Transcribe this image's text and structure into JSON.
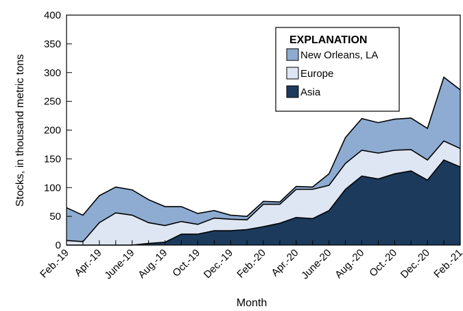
{
  "chart_data": {
    "type": "area",
    "stacked": true,
    "ylabel": "Stocks, in thousand metric tons",
    "xlabel": "Month",
    "ylim": [
      0,
      400
    ],
    "yticks": [
      0,
      50,
      100,
      150,
      200,
      250,
      300,
      350,
      400
    ],
    "x": [
      "Feb.-19",
      "Mar.-19",
      "Apr.-19",
      "May-19",
      "June-19",
      "July-19",
      "Aug.-19",
      "Sep.-19",
      "Oct.-19",
      "Nov.-19",
      "Dec.-19",
      "Jan.-20",
      "Feb.-20",
      "Mar.-20",
      "Apr.-20",
      "May-20",
      "June-20",
      "July-20",
      "Aug.-20",
      "Sep.-20",
      "Oct.-20",
      "Nov.-20",
      "Dec.-20",
      "Jan.-21",
      "Feb.-21"
    ],
    "xtick_labels": [
      "Feb.-19",
      "Apr.-19",
      "June-19",
      "Aug.-19",
      "Oct.-19",
      "Dec.-19",
      "Feb.-20",
      "Apr.-20",
      "June-20",
      "Aug.-20",
      "Oct.-20",
      "Dec.-20",
      "Feb.-21"
    ],
    "legend_title": "EXPLANATION",
    "legend_position": "top-right",
    "grid": false,
    "series": [
      {
        "name": "Asia",
        "color": "#1b3a5c",
        "values": [
          0,
          0,
          0,
          0,
          0,
          3,
          5,
          19,
          19,
          25,
          25,
          27,
          32,
          38,
          48,
          46,
          60,
          97,
          120,
          115,
          124,
          129,
          113,
          148,
          136
        ]
      },
      {
        "name": "Europe",
        "color": "#dde6f2",
        "values": [
          8,
          6,
          39,
          56,
          52,
          36,
          29,
          22,
          17,
          22,
          20,
          17,
          39,
          33,
          49,
          51,
          44,
          45,
          45,
          45,
          41,
          37,
          35,
          33,
          32
        ]
      },
      {
        "name": "New Orleans, LA",
        "color": "#8eacd2",
        "values": [
          57,
          46,
          47,
          45,
          44,
          40,
          33,
          26,
          19,
          13,
          7,
          6,
          5,
          4,
          5,
          4,
          20,
          45,
          55,
          53,
          54,
          55,
          55,
          111,
          102
        ]
      }
    ]
  }
}
